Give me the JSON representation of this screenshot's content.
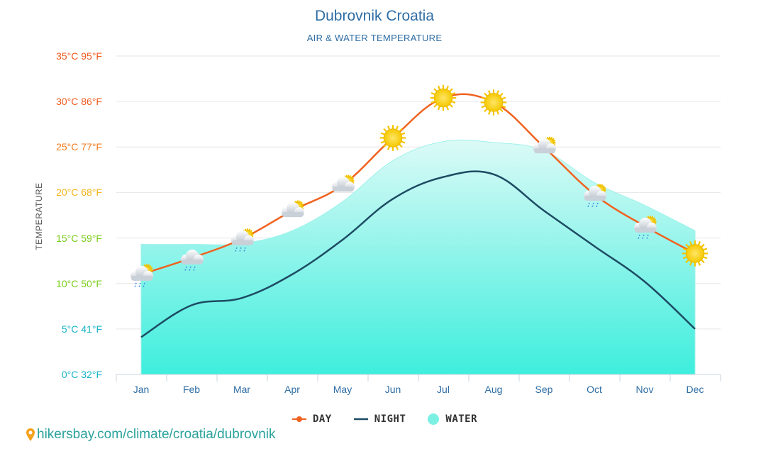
{
  "chart_data": {
    "type": "line",
    "title": "Dubrovnik Croatia",
    "subtitle": "AIR & WATER TEMPERATURE",
    "ylabel": "TEMPERATURE",
    "categories": [
      "Jan",
      "Feb",
      "Mar",
      "Apr",
      "May",
      "Jun",
      "Jul",
      "Aug",
      "Sep",
      "Oct",
      "Nov",
      "Dec"
    ],
    "ylim": [
      0,
      35
    ],
    "y_ticks": [
      {
        "value": 0,
        "label": "0°C 32°F",
        "color": "#1ab3c8"
      },
      {
        "value": 5,
        "label": "5°C 41°F",
        "color": "#1ab3c8"
      },
      {
        "value": 10,
        "label": "10°C 50°F",
        "color": "#7ccc1c"
      },
      {
        "value": 15,
        "label": "15°C 59°F",
        "color": "#7ccc1c"
      },
      {
        "value": 20,
        "label": "20°C 68°F",
        "color": "#f2b51b"
      },
      {
        "value": 25,
        "label": "25°C 77°F",
        "color": "#f07b1f"
      },
      {
        "value": 30,
        "label": "30°C 86°F",
        "color": "#f05a1f"
      },
      {
        "value": 35,
        "label": "35°C 95°F",
        "color": "#f05a1f"
      }
    ],
    "grid": true,
    "legend_position": "bottom-center",
    "series": [
      {
        "name": "DAY",
        "color": "#f0621f",
        "values": [
          11,
          12.8,
          14.9,
          18,
          20.8,
          26,
          30.4,
          29.9,
          25,
          19.8,
          16.3,
          13.3
        ]
      },
      {
        "name": "NIGHT",
        "color": "#1d4b63",
        "values": [
          4.1,
          7.6,
          8.4,
          11,
          14.8,
          19.3,
          21.7,
          22,
          18,
          14.1,
          10.2,
          5
        ]
      },
      {
        "name": "WATER",
        "color": "#7df0e4",
        "values": [
          14.3,
          14.3,
          14.4,
          15.8,
          19,
          23.5,
          25.6,
          25.5,
          24.6,
          21.1,
          18.6,
          15.8
        ]
      }
    ],
    "weather_icons": [
      "cloud-rain-sun",
      "cloud-rain",
      "cloud-rain-sun",
      "cloud-sun",
      "cloud-sun",
      "sun",
      "sun",
      "sun",
      "cloud-sun",
      "cloud-rain-sun",
      "cloud-rain-sun",
      "sun"
    ]
  },
  "source": {
    "icon": "map-pin-icon",
    "text": "hikersbay.com/climate/croatia/dubrovnik"
  }
}
